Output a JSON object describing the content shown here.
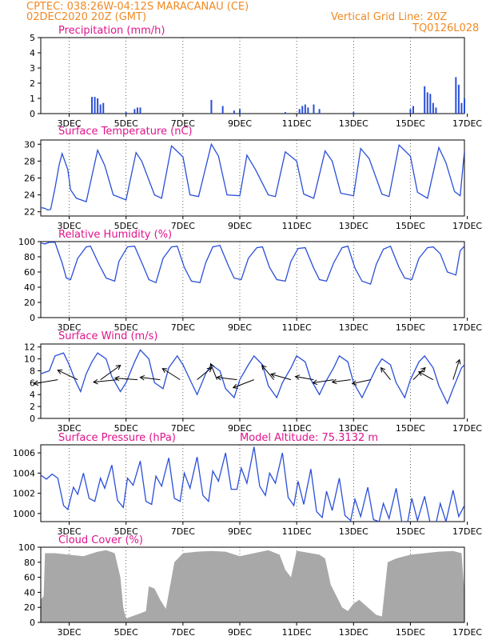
{
  "header": {
    "line1": "CPTEC:   038:26W-04:12S   MARACANAU (CE)",
    "line2": "02DEC2020 20Z (GMT)",
    "right1": "Vertical Grid Line: 20Z",
    "right2": "TQ0126L028"
  },
  "colors": {
    "header": "#f08a24",
    "title": "#e0148c",
    "line": "#2a4fd8",
    "cloud": "#a8a8a8",
    "arrow": "#000000"
  },
  "x_ticks": [
    "3DEC",
    "5DEC",
    "7DEC",
    "9DEC",
    "11DEC",
    "13DEC",
    "15DEC",
    "17DEC"
  ],
  "chart_data": [
    {
      "type": "bar",
      "title": "Precipitation (mm/h)",
      "x_range": [
        2.0,
        16.9
      ],
      "ylim": [
        0,
        5
      ],
      "yticks": [
        0,
        1,
        2,
        3,
        4,
        5
      ],
      "series": [
        {
          "values": [
            [
              3.8,
              1.1
            ],
            [
              3.9,
              1.1
            ],
            [
              4.0,
              1.0
            ],
            [
              4.1,
              0.6
            ],
            [
              4.2,
              0.7
            ],
            [
              5.0,
              0.1
            ],
            [
              5.3,
              0.3
            ],
            [
              5.4,
              0.4
            ],
            [
              5.5,
              0.4
            ],
            [
              8.0,
              0.9
            ],
            [
              8.4,
              0.5
            ],
            [
              8.8,
              0.2
            ],
            [
              9.0,
              0.3
            ],
            [
              10.6,
              0.1
            ],
            [
              11.1,
              0.3
            ],
            [
              11.2,
              0.5
            ],
            [
              11.3,
              0.6
            ],
            [
              11.4,
              0.4
            ],
            [
              11.6,
              0.6
            ],
            [
              11.8,
              0.3
            ],
            [
              13.0,
              0.1
            ],
            [
              15.0,
              0.3
            ],
            [
              15.1,
              0.5
            ],
            [
              15.5,
              1.8
            ],
            [
              15.6,
              1.4
            ],
            [
              15.7,
              1.3
            ],
            [
              15.8,
              0.7
            ],
            [
              15.9,
              0.4
            ],
            [
              16.6,
              2.4
            ],
            [
              16.7,
              1.9
            ],
            [
              16.8,
              0.7
            ],
            [
              16.9,
              1.0
            ]
          ]
        }
      ]
    },
    {
      "type": "line",
      "title": "Surface Temperature (nC)",
      "x_range": [
        2.0,
        16.9
      ],
      "ylim": [
        21.5,
        30.5
      ],
      "yticks": [
        22,
        24,
        26,
        28,
        30
      ],
      "series": [
        {
          "x": [
            2.0,
            2.15,
            2.25,
            2.35,
            2.5,
            2.65,
            2.75,
            2.95,
            3.05,
            3.25,
            3.6,
            4.0,
            4.25,
            4.55,
            5.0,
            5.35,
            5.55,
            6.0,
            6.25,
            6.6,
            7.0,
            7.25,
            7.55,
            8.0,
            8.25,
            8.55,
            9.0,
            9.25,
            9.55,
            10.0,
            10.25,
            10.6,
            11.0,
            11.25,
            11.6,
            12.0,
            12.25,
            12.55,
            13.0,
            13.25,
            13.55,
            14.0,
            14.25,
            14.6,
            15.0,
            15.25,
            15.6,
            16.0,
            16.25,
            16.55,
            16.75,
            16.9
          ],
          "y": [
            22.5,
            22.4,
            22.2,
            22.3,
            24.8,
            27.6,
            28.9,
            27.0,
            24.6,
            23.6,
            23.2,
            29.3,
            27.5,
            24.0,
            23.4,
            29.0,
            28.0,
            24.0,
            23.6,
            29.8,
            28.5,
            24.0,
            23.8,
            30.0,
            28.6,
            24.0,
            23.9,
            28.7,
            27.0,
            24.0,
            23.8,
            29.1,
            28.0,
            24.1,
            23.6,
            29.2,
            28.0,
            24.2,
            23.9,
            29.5,
            28.3,
            24.1,
            23.8,
            29.9,
            28.6,
            24.3,
            23.6,
            29.6,
            27.8,
            24.4,
            23.9,
            29.2
          ]
        }
      ]
    },
    {
      "type": "line",
      "title": "Relative Humidity (%)",
      "x_range": [
        2.0,
        16.9
      ],
      "ylim": [
        0,
        100
      ],
      "yticks": [
        0,
        20,
        40,
        60,
        80,
        100
      ],
      "series": [
        {
          "x": [
            2.0,
            2.15,
            2.3,
            2.5,
            2.75,
            2.9,
            3.05,
            3.3,
            3.6,
            3.75,
            4.05,
            4.3,
            4.6,
            4.75,
            5.05,
            5.3,
            5.6,
            5.8,
            6.05,
            6.3,
            6.6,
            6.8,
            7.05,
            7.3,
            7.6,
            7.8,
            8.05,
            8.3,
            8.6,
            8.8,
            9.05,
            9.3,
            9.6,
            9.8,
            10.05,
            10.3,
            10.6,
            10.8,
            11.05,
            11.3,
            11.6,
            11.8,
            12.05,
            12.3,
            12.6,
            12.8,
            13.05,
            13.3,
            13.6,
            13.8,
            14.05,
            14.3,
            14.6,
            14.8,
            15.05,
            15.3,
            15.6,
            15.8,
            16.05,
            16.3,
            16.6,
            16.75,
            16.9
          ],
          "y": [
            98,
            97,
            99,
            99,
            72,
            52,
            50,
            78,
            93,
            94,
            70,
            52,
            48,
            74,
            93,
            94,
            68,
            50,
            46,
            78,
            93,
            94,
            66,
            48,
            46,
            72,
            93,
            95,
            68,
            52,
            50,
            78,
            92,
            93,
            66,
            50,
            48,
            74,
            91,
            92,
            65,
            50,
            48,
            72,
            92,
            94,
            65,
            48,
            44,
            70,
            90,
            94,
            66,
            52,
            50,
            78,
            92,
            93,
            84,
            60,
            56,
            88,
            94
          ]
        }
      ]
    },
    {
      "type": "line",
      "title": "Surface Wind (m/s)",
      "x_range": [
        2.0,
        16.9
      ],
      "ylim": [
        0,
        12.5
      ],
      "yticks": [
        0,
        2,
        4,
        6,
        8,
        10,
        12
      ],
      "series": [
        {
          "x": [
            2.0,
            2.3,
            2.5,
            2.8,
            3.0,
            3.2,
            3.4,
            3.6,
            3.8,
            4.0,
            4.3,
            4.5,
            4.8,
            5.0,
            5.3,
            5.5,
            5.8,
            6.0,
            6.3,
            6.5,
            6.8,
            7.0,
            7.3,
            7.5,
            7.8,
            8.0,
            8.3,
            8.5,
            8.8,
            9.0,
            9.3,
            9.5,
            9.8,
            10.0,
            10.3,
            10.5,
            10.8,
            11.0,
            11.3,
            11.5,
            11.8,
            12.0,
            12.3,
            12.5,
            12.8,
            13.0,
            13.3,
            13.5,
            13.8,
            14.0,
            14.3,
            14.5,
            14.8,
            15.0,
            15.3,
            15.5,
            15.8,
            16.0,
            16.3,
            16.5,
            16.8,
            16.9
          ],
          "y": [
            7.5,
            8.0,
            10.5,
            11.0,
            9.0,
            6.5,
            4.5,
            7.5,
            9.5,
            11.0,
            10.0,
            7.0,
            4.5,
            6.0,
            9.5,
            11.5,
            10.0,
            6.0,
            5.0,
            8.5,
            10.5,
            9.0,
            6.0,
            4.0,
            7.5,
            9.0,
            8.0,
            5.0,
            3.5,
            6.5,
            9.0,
            10.5,
            9.0,
            5.5,
            3.5,
            6.0,
            8.5,
            10.5,
            9.5,
            6.5,
            4.0,
            6.0,
            8.5,
            10.5,
            9.5,
            6.0,
            3.5,
            5.5,
            8.5,
            10.0,
            9.0,
            6.0,
            3.5,
            6.5,
            9.5,
            10.5,
            8.5,
            5.5,
            2.5,
            5.0,
            8.5,
            9.0
          ]
        }
      ],
      "arrows": [
        {
          "x": 2.6,
          "u": -3,
          "v": -0.5
        },
        {
          "x": 3.3,
          "u": -2.5,
          "v": 1.2
        },
        {
          "x": 4.1,
          "u": 2.5,
          "v": 1.8
        },
        {
          "x": 4.7,
          "u": -3,
          "v": -0.3
        },
        {
          "x": 5.4,
          "u": -2.8,
          "v": 0.2
        },
        {
          "x": 6.2,
          "u": -2.5,
          "v": 0.3
        },
        {
          "x": 6.9,
          "u": -2.2,
          "v": 1.4
        },
        {
          "x": 7.5,
          "u": 1.8,
          "v": 1.5
        },
        {
          "x": 8.2,
          "u": -0.8,
          "v": 2.0
        },
        {
          "x": 8.9,
          "u": -2.5,
          "v": 0.3
        },
        {
          "x": 9.5,
          "u": -2.6,
          "v": -1.0
        },
        {
          "x": 10.2,
          "u": -1.5,
          "v": 1.8
        },
        {
          "x": 10.8,
          "u": -2.5,
          "v": 0.7
        },
        {
          "x": 11.6,
          "u": -2.3,
          "v": 0.4
        },
        {
          "x": 12.3,
          "u": -2.6,
          "v": -0.4
        },
        {
          "x": 12.9,
          "u": -2.3,
          "v": -0.3
        },
        {
          "x": 13.6,
          "u": -2.3,
          "v": -0.5
        },
        {
          "x": 14.3,
          "u": -1.2,
          "v": 1.5
        },
        {
          "x": 15.1,
          "u": 1.5,
          "v": 1.5
        },
        {
          "x": 15.8,
          "u": -1.8,
          "v": 1.0
        },
        {
          "x": 16.5,
          "u": 0.8,
          "v": 2.5
        }
      ]
    },
    {
      "type": "line",
      "title": "Surface Pressure (hPa)",
      "annotation": "Model Altitude: 75.3132 m",
      "x_range": [
        2.0,
        16.9
      ],
      "ylim": [
        999.2,
        1006.8
      ],
      "yticks": [
        1000,
        1002,
        1004,
        1006
      ],
      "series": [
        {
          "x": [
            2.0,
            2.2,
            2.4,
            2.6,
            2.8,
            2.95,
            3.15,
            3.3,
            3.5,
            3.7,
            3.9,
            4.1,
            4.25,
            4.5,
            4.7,
            4.9,
            5.05,
            5.25,
            5.5,
            5.7,
            5.9,
            6.05,
            6.25,
            6.5,
            6.7,
            6.9,
            7.05,
            7.25,
            7.5,
            7.7,
            7.9,
            8.05,
            8.25,
            8.5,
            8.7,
            8.9,
            9.05,
            9.25,
            9.5,
            9.7,
            9.9,
            10.05,
            10.25,
            10.5,
            10.7,
            10.9,
            11.05,
            11.25,
            11.5,
            11.7,
            11.9,
            12.05,
            12.25,
            12.5,
            12.7,
            12.9,
            13.05,
            13.25,
            13.5,
            13.7,
            13.9,
            14.05,
            14.25,
            14.5,
            14.7,
            14.9,
            15.05,
            15.25,
            15.5,
            15.7,
            15.9,
            16.05,
            16.25,
            16.5,
            16.7,
            16.9
          ],
          "y": [
            1003.8,
            1003.4,
            1003.9,
            1003.5,
            1000.8,
            1000.4,
            1002.6,
            1001.9,
            1004.0,
            1001.5,
            1001.2,
            1003.5,
            1002.5,
            1004.8,
            1001.3,
            1000.6,
            1003.5,
            1002.8,
            1005.2,
            1001.2,
            1000.9,
            1003.7,
            1002.7,
            1005.5,
            1001.5,
            1001.2,
            1004.0,
            1002.5,
            1005.6,
            1001.8,
            1001.2,
            1004.2,
            1003.2,
            1006.0,
            1002.4,
            1002.4,
            1004.5,
            1003.0,
            1006.6,
            1002.7,
            1001.8,
            1004.0,
            1003.0,
            1006.0,
            1001.6,
            1000.8,
            1003.2,
            1000.9,
            1004.4,
            1000.2,
            999.6,
            1002.2,
            1000.3,
            1003.5,
            999.8,
            999.3,
            1001.4,
            999.7,
            1002.6,
            999.4,
            999.2,
            1001.0,
            999.5,
            1002.5,
            999.2,
            999.1,
            1001.5,
            999.3,
            1001.7,
            999.0,
            999.0,
            1001.0,
            999.2,
            1002.3,
            999.7,
            1000.8
          ]
        }
      ]
    },
    {
      "type": "area",
      "title": "Cloud Cover (%)",
      "x_range": [
        2.0,
        16.9
      ],
      "ylim": [
        0,
        100
      ],
      "yticks": [
        0,
        20,
        40,
        60,
        80,
        100
      ],
      "series": [
        {
          "x": [
            2.0,
            2.1,
            2.15,
            2.5,
            3.0,
            3.5,
            4.0,
            4.3,
            4.6,
            4.8,
            4.9,
            5.0,
            5.2,
            5.5,
            5.7,
            5.8,
            6.0,
            6.2,
            6.4,
            6.7,
            7.0,
            7.5,
            8.0,
            8.5,
            9.0,
            9.5,
            10.0,
            10.4,
            10.6,
            10.8,
            11.0,
            11.2,
            11.5,
            11.8,
            12.0,
            12.2,
            12.4,
            12.6,
            12.8,
            13.0,
            13.2,
            13.5,
            13.8,
            14.0,
            14.2,
            14.5,
            15.0,
            15.5,
            16.0,
            16.5,
            16.8,
            16.9
          ],
          "y": [
            30,
            35,
            92,
            92,
            90,
            88,
            94,
            96,
            92,
            60,
            20,
            5,
            8,
            12,
            15,
            48,
            45,
            30,
            18,
            80,
            92,
            94,
            95,
            94,
            88,
            92,
            96,
            90,
            70,
            60,
            95,
            94,
            92,
            90,
            85,
            50,
            35,
            20,
            15,
            25,
            30,
            20,
            10,
            8,
            80,
            85,
            90,
            92,
            94,
            95,
            92,
            40
          ]
        }
      ]
    }
  ]
}
